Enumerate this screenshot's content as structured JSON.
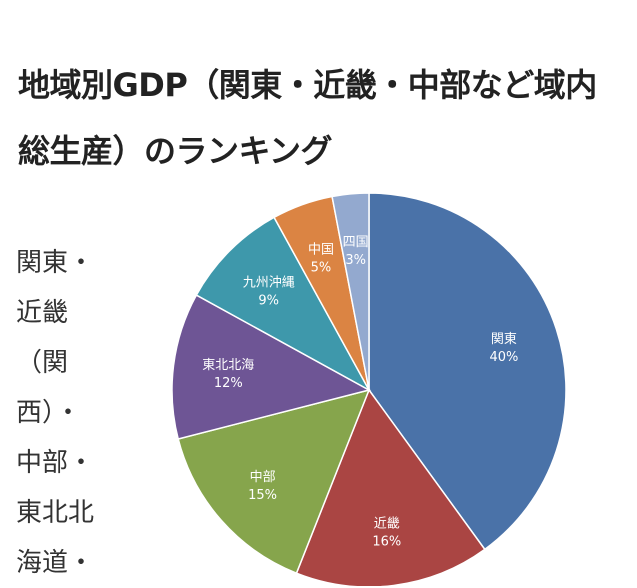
{
  "page": {
    "title": "地域別GDP（関東・近畿・中部など域内総生産）のランキング",
    "side_text": [
      "関東・",
      "近畿",
      "（関",
      "西）・",
      "中部・",
      "東北北",
      "海道・"
    ]
  },
  "chart_data": {
    "type": "pie",
    "title": "",
    "categories": [
      "関東",
      "近畿",
      "中部",
      "東北北海",
      "九州沖縄",
      "中国",
      "四国"
    ],
    "values": [
      40,
      16,
      15,
      12,
      9,
      5,
      3
    ],
    "labels": [
      "40%",
      "16%",
      "15%",
      "12%",
      "9%",
      "5%",
      "3%"
    ],
    "colors": [
      "#4a72a8",
      "#aa4543",
      "#86a54c",
      "#6e5595",
      "#3e98ab",
      "#db8443",
      "#93a9cf"
    ],
    "start_angle_deg": 0,
    "direction": "clockwise",
    "legend": "none"
  }
}
